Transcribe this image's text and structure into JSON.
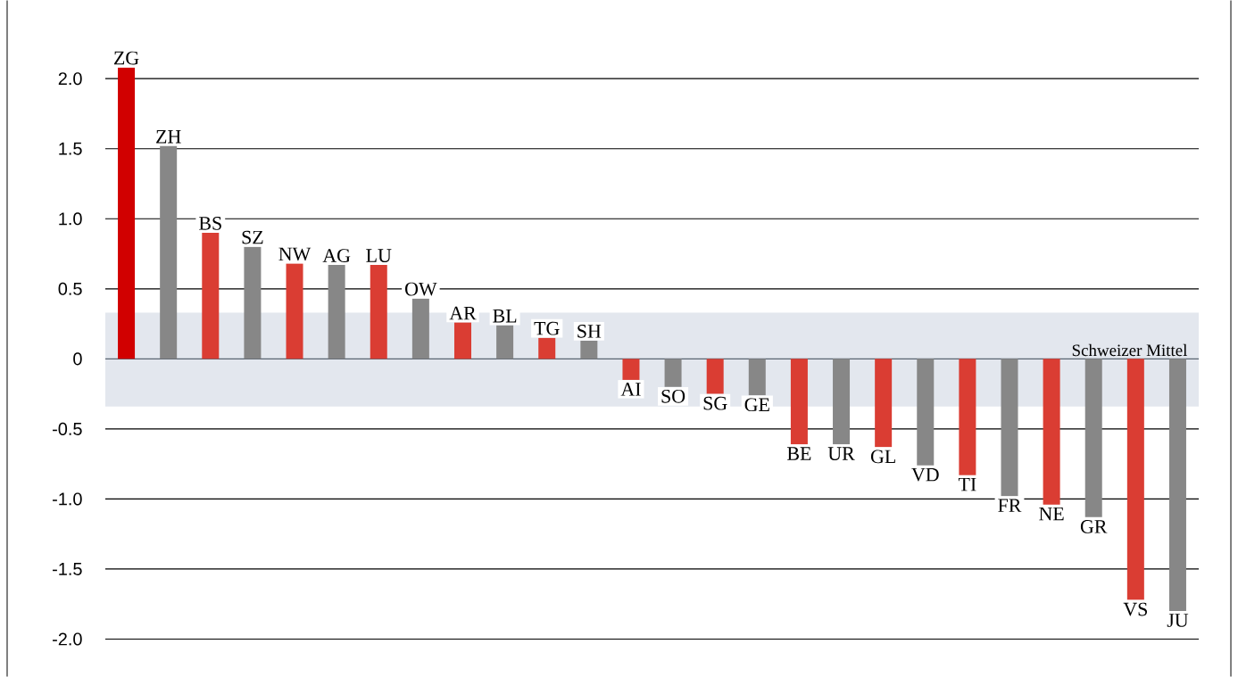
{
  "chart_data": {
    "type": "bar",
    "categories": [
      "ZG",
      "ZH",
      "BS",
      "SZ",
      "NW",
      "AG",
      "LU",
      "OW",
      "AR",
      "BL",
      "TG",
      "SH",
      "AI",
      "SO",
      "SG",
      "GE",
      "BE",
      "UR",
      "GL",
      "VD",
      "TI",
      "FR",
      "NE",
      "GR",
      "VS",
      "JU"
    ],
    "values": [
      2.08,
      1.52,
      0.9,
      0.8,
      0.68,
      0.67,
      0.67,
      0.43,
      0.26,
      0.24,
      0.15,
      0.13,
      -0.15,
      -0.2,
      -0.25,
      -0.26,
      -0.61,
      -0.61,
      -0.63,
      -0.76,
      -0.83,
      -0.98,
      -1.04,
      -1.13,
      -1.72,
      -1.8
    ],
    "colors": [
      "#d10000",
      "#878787",
      "#da3d33",
      "#878787",
      "#da3d33",
      "#878787",
      "#da3d33",
      "#878787",
      "#da3d33",
      "#878787",
      "#da3d33",
      "#878787",
      "#da3d33",
      "#878787",
      "#da3d33",
      "#878787",
      "#da3d33",
      "#878787",
      "#da3d33",
      "#878787",
      "#da3d33",
      "#878787",
      "#da3d33",
      "#878787",
      "#da3d33",
      "#878787"
    ],
    "ylim": [
      -2.0,
      2.1
    ],
    "yticks": [
      {
        "value": -2,
        "label": "-2.0"
      },
      {
        "value": -1.5,
        "label": "-1.5"
      },
      {
        "value": -1,
        "label": "-1.0"
      },
      {
        "value": -0.5,
        "label": "-0.5"
      },
      {
        "value": 0,
        "label": "0"
      },
      {
        "value": 0.5,
        "label": "0.5"
      },
      {
        "value": 1,
        "label": "1.0"
      },
      {
        "value": 1.5,
        "label": "1.5"
      },
      {
        "value": 2,
        "label": "2.0"
      }
    ],
    "grid": "y",
    "bands": [
      {
        "axis": "y",
        "from": -0.34,
        "to": 0.33,
        "label": "Schweizer Mittel",
        "color": "#e3e7ee"
      }
    ]
  }
}
